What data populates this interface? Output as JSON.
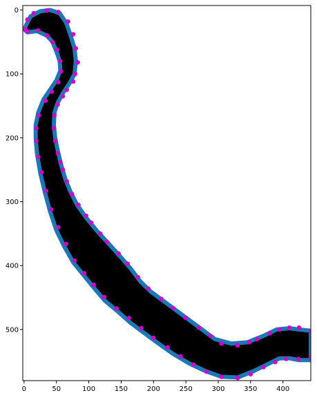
{
  "chart_data": {
    "type": "scatter",
    "title": "",
    "xlabel": "",
    "ylabel": "",
    "xlim": [
      -2,
      443
    ],
    "ylim": [
      580,
      -7
    ],
    "y_inverted": true,
    "xticks": [
      0,
      50,
      100,
      150,
      200,
      250,
      300,
      350,
      400
    ],
    "yticks": [
      0,
      100,
      200,
      300,
      400,
      500
    ],
    "grid": false,
    "legend": "none",
    "colors": {
      "fill": "#000000",
      "outline": "#1f77b4",
      "points": "#cc00cc"
    },
    "series": [
      {
        "kind": "filled-polygon-outline",
        "points": [
          [
            0,
            30
          ],
          [
            10,
            10
          ],
          [
            25,
            2
          ],
          [
            40,
            0
          ],
          [
            55,
            5
          ],
          [
            65,
            20
          ],
          [
            72,
            40
          ],
          [
            78,
            60
          ],
          [
            80,
            80
          ],
          [
            78,
            100
          ],
          [
            70,
            115
          ],
          [
            60,
            130
          ],
          [
            52,
            145
          ],
          [
            47,
            160
          ],
          [
            46,
            180
          ],
          [
            48,
            200
          ],
          [
            52,
            220
          ],
          [
            58,
            245
          ],
          [
            64,
            265
          ],
          [
            72,
            285
          ],
          [
            82,
            305
          ],
          [
            96,
            325
          ],
          [
            112,
            345
          ],
          [
            130,
            365
          ],
          [
            148,
            385
          ],
          [
            165,
            405
          ],
          [
            180,
            425
          ],
          [
            195,
            440
          ],
          [
            215,
            455
          ],
          [
            235,
            470
          ],
          [
            255,
            485
          ],
          [
            275,
            500
          ],
          [
            295,
            515
          ],
          [
            320,
            522
          ],
          [
            345,
            520
          ],
          [
            370,
            510
          ],
          [
            390,
            500
          ],
          [
            410,
            498
          ],
          [
            425,
            500
          ],
          [
            443,
            502
          ],
          [
            443,
            548
          ],
          [
            425,
            548
          ],
          [
            410,
            545
          ],
          [
            395,
            545
          ],
          [
            375,
            555
          ],
          [
            355,
            565
          ],
          [
            330,
            575
          ],
          [
            305,
            574
          ],
          [
            280,
            565
          ],
          [
            255,
            553
          ],
          [
            230,
            538
          ],
          [
            205,
            520
          ],
          [
            185,
            505
          ],
          [
            165,
            490
          ],
          [
            145,
            472
          ],
          [
            125,
            455
          ],
          [
            108,
            435
          ],
          [
            92,
            415
          ],
          [
            76,
            395
          ],
          [
            62,
            370
          ],
          [
            50,
            345
          ],
          [
            40,
            315
          ],
          [
            32,
            285
          ],
          [
            25,
            255
          ],
          [
            20,
            225
          ],
          [
            18,
            200
          ],
          [
            18,
            180
          ],
          [
            22,
            160
          ],
          [
            30,
            140
          ],
          [
            40,
            125
          ],
          [
            50,
            110
          ],
          [
            56,
            95
          ],
          [
            55,
            80
          ],
          [
            50,
            65
          ],
          [
            44,
            50
          ],
          [
            35,
            40
          ],
          [
            20,
            33
          ],
          [
            5,
            35
          ]
        ]
      },
      {
        "kind": "markers",
        "points": [
          [
            2,
            30
          ],
          [
            5,
            15
          ],
          [
            15,
            5
          ],
          [
            35,
            1
          ],
          [
            53,
            3
          ],
          [
            68,
            18
          ],
          [
            76,
            38
          ],
          [
            80,
            60
          ],
          [
            83,
            82
          ],
          [
            79,
            100
          ],
          [
            76,
            112
          ],
          [
            66,
            125
          ],
          [
            60,
            135
          ],
          [
            52,
            148
          ],
          [
            47,
            165
          ],
          [
            46,
            185
          ],
          [
            48,
            205
          ],
          [
            52,
            224
          ],
          [
            56,
            238
          ],
          [
            60,
            250
          ],
          [
            66,
            268
          ],
          [
            74,
            288
          ],
          [
            84,
            305
          ],
          [
            96,
            322
          ],
          [
            104,
            333
          ],
          [
            118,
            350
          ],
          [
            128,
            363
          ],
          [
            146,
            381
          ],
          [
            160,
            397
          ],
          [
            176,
            418
          ],
          [
            192,
            436
          ],
          [
            212,
            452
          ],
          [
            230,
            466
          ],
          [
            250,
            482
          ],
          [
            270,
            497
          ],
          [
            288,
            510
          ],
          [
            305,
            522
          ],
          [
            330,
            525
          ],
          [
            348,
            520
          ],
          [
            360,
            515
          ],
          [
            380,
            506
          ],
          [
            395,
            500
          ],
          [
            410,
            497
          ],
          [
            425,
            497
          ],
          [
            443,
            503
          ],
          [
            443,
            543
          ],
          [
            424,
            546
          ],
          [
            405,
            546
          ],
          [
            388,
            551
          ],
          [
            370,
            559
          ],
          [
            350,
            570
          ],
          [
            330,
            576
          ],
          [
            305,
            574
          ],
          [
            282,
            566
          ],
          [
            262,
            555
          ],
          [
            242,
            542
          ],
          [
            222,
            528
          ],
          [
            200,
            513
          ],
          [
            181,
            498
          ],
          [
            162,
            482
          ],
          [
            143,
            467
          ],
          [
            124,
            449
          ],
          [
            108,
            430
          ],
          [
            93,
            412
          ],
          [
            78,
            392
          ],
          [
            65,
            366
          ],
          [
            53,
            340
          ],
          [
            42,
            312
          ],
          [
            34,
            283
          ],
          [
            27,
            254
          ],
          [
            22,
            230
          ],
          [
            19,
            205
          ],
          [
            19,
            185
          ],
          [
            23,
            165
          ],
          [
            33,
            142
          ],
          [
            43,
            128
          ],
          [
            53,
            113
          ],
          [
            57,
            96
          ],
          [
            56,
            80
          ],
          [
            51,
            62
          ],
          [
            44,
            50
          ],
          [
            36,
            40
          ],
          [
            22,
            32
          ],
          [
            6,
            34
          ]
        ]
      }
    ]
  }
}
